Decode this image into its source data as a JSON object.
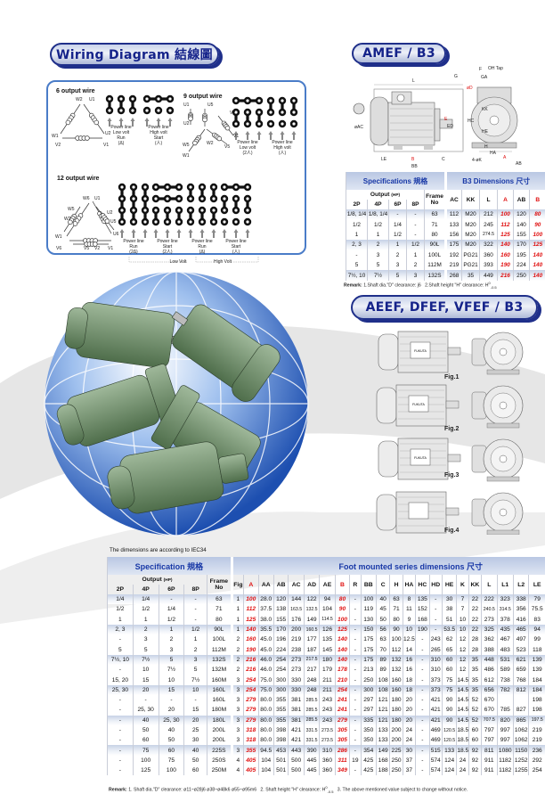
{
  "wiring": {
    "title": "Wiring Diagram 結線圖",
    "six": {
      "heading": "6 output wire",
      "coils": [
        "W2",
        "U1",
        "W1",
        "U2",
        "V2",
        "V1"
      ],
      "labels": [
        [
          "Power line",
          "Low volt",
          "Run",
          "(Δ)"
        ],
        [
          "Power line",
          "High volt",
          "Start",
          "(人)"
        ]
      ]
    },
    "nine": {
      "heading": "9 output wire",
      "coils": [
        "U1",
        "U5",
        "U2",
        "V2",
        "W5",
        "W2",
        "V5",
        "V1",
        "W1"
      ],
      "labels": [
        [
          "Power line",
          "Low volt",
          "(2人)"
        ],
        [
          "Power line",
          "High volt",
          "(人)"
        ]
      ]
    },
    "twelve": {
      "heading": "12 output wire",
      "coils": [
        "W6",
        "U1",
        "W5",
        "U2",
        "W2",
        "U5",
        "W1",
        "U6",
        "V6",
        "V5",
        "V2",
        "V1"
      ],
      "labels": [
        [
          "Power line",
          "Run",
          "(2Δ)"
        ],
        [
          "Power line",
          "Start",
          "(2人)"
        ],
        [
          "Power line",
          "Run",
          "(Δ)"
        ],
        [
          "Power line",
          "Start",
          "(人)"
        ]
      ],
      "low_volt": "Low Volt",
      "high_volt": "High Volt"
    }
  },
  "amef": {
    "title": "AMEF / B3",
    "drawing_labels": {
      "F": "F",
      "oil_tap": "OH Tap",
      "G": "G",
      "GA": "GA",
      "D": "øD",
      "L": "L",
      "AC": "øAC",
      "E": "E",
      "ED": "ED",
      "LE": "LE",
      "B": "B",
      "C": "C",
      "BB": "BB",
      "KK": "KK",
      "HC": "HC",
      "HE": "HE",
      "H": "H",
      "HA": "HA",
      "K": "4-øK",
      "A": "A",
      "AB": "AB"
    },
    "spec_header": "Specifications 規格",
    "dim_header": "B3 Dimensions 尺寸",
    "output_label": "Output",
    "output_unit": "(HP)",
    "poles": [
      "2P",
      "4P",
      "6P",
      "8P"
    ],
    "frame_label": [
      "Frame",
      "No"
    ],
    "dim_columns": [
      "AC",
      "KK",
      "L",
      "A",
      "AB",
      "B"
    ],
    "red_columns": [
      "A",
      "B"
    ],
    "rows": [
      [
        "1/8, 1/4",
        "1/8, 1/4",
        "-",
        "-",
        "63",
        "112",
        "M20",
        "212",
        "100",
        "120",
        "80"
      ],
      [
        "1/2",
        "1/2",
        "1/4",
        "-",
        "71",
        "133",
        "M20",
        "245",
        "112",
        "140",
        "90"
      ],
      [
        "1",
        "1",
        "1/2",
        "-",
        "80",
        "156",
        "M20",
        "274.5",
        "125",
        "155",
        "100"
      ],
      [
        "2, 3",
        "2",
        "1",
        "1/2",
        "90L",
        "175",
        "M20",
        "322",
        "140",
        "170",
        "125"
      ],
      [
        "-",
        "3",
        "2",
        "1",
        "100L",
        "192",
        "PG21",
        "360",
        "160",
        "195",
        "140"
      ],
      [
        "5",
        "5",
        "3",
        "2",
        "112M",
        "219",
        "PG21",
        "393",
        "190",
        "224",
        "140"
      ],
      [
        "7½, 10",
        "7½",
        "5",
        "3",
        "132S",
        "268",
        "35",
        "449",
        "216",
        "250",
        "140"
      ]
    ],
    "band_rows": [
      0,
      3,
      6
    ],
    "remark_label": "Remark:",
    "remark_1": "1.Shaft dia.\"D\" clearance: j6",
    "remark_2": "2.Shaft height \"H\" clearance: H",
    "remark_2_tol": [
      "0",
      "-0.5"
    ]
  },
  "aeef": {
    "title": "AEEF, DFEF, VFEF / B3",
    "figures": [
      "Fig.1",
      "Fig.2",
      "Fig.3",
      "Fig.4"
    ],
    "nameplate": "FUKUTA"
  },
  "foot": {
    "note": "The dimensions are according to IEC34",
    "spec_header": "Specification 規格",
    "dim_header": "Foot mounted series dimensions 尺寸",
    "output_label": "Output",
    "output_unit": "(HP)",
    "poles": [
      "2P",
      "4P",
      "6P",
      "8P"
    ],
    "frame_label": [
      "Frame",
      "No"
    ],
    "dim_columns": [
      "Fig",
      "A",
      "AA",
      "AB",
      "AC",
      "AD",
      "AE",
      "B",
      "R",
      "BB",
      "C",
      "H",
      "HA",
      "HC",
      "HD",
      "HE",
      "K",
      "KK",
      "L",
      "L1",
      "L2",
      "LE"
    ],
    "red_columns": [
      "A",
      "B"
    ],
    "rows": [
      [
        "1/4",
        "1/4",
        "-",
        "-",
        "63",
        "1",
        "100",
        "28.0",
        "120",
        "144",
        "122",
        "94",
        "80",
        "-",
        "100",
        "40",
        "63",
        "8",
        "135",
        "-",
        "30",
        "7",
        "22",
        "222",
        "323",
        "338",
        "79"
      ],
      [
        "1/2",
        "1/2",
        "1/4",
        "-",
        "71",
        "1",
        "112",
        "37.5",
        "138",
        "163.5",
        "132.5",
        "104",
        "90",
        "-",
        "119",
        "45",
        "71",
        "11",
        "152",
        "-",
        "38",
        "7",
        "22",
        "240.5",
        "314.5",
        "356",
        "75.5"
      ],
      [
        "1",
        "1",
        "1/2",
        "-",
        "80",
        "1",
        "125",
        "38.0",
        "155",
        "176",
        "149",
        "114.5",
        "100",
        "-",
        "130",
        "50",
        "80",
        "9",
        "168",
        "-",
        "51",
        "10",
        "22",
        "273",
        "378",
        "416",
        "83"
      ],
      [
        "2, 3",
        "2",
        "1",
        "1/2",
        "90L",
        "1",
        "140",
        "35.5",
        "170",
        "200",
        "160.5",
        "126",
        "125",
        "-",
        "150",
        "56",
        "90",
        "10",
        "190",
        "-",
        "53.5",
        "10",
        "22",
        "325",
        "435",
        "465",
        "94"
      ],
      [
        "-",
        "3",
        "2",
        "1",
        "100L",
        "2",
        "160",
        "45.0",
        "196",
        "219",
        "177",
        "135",
        "140",
        "-",
        "175",
        "63",
        "100",
        "12.5",
        "-",
        "243",
        "62",
        "12",
        "28",
        "362",
        "467",
        "497",
        "99"
      ],
      [
        "5",
        "5",
        "3",
        "2",
        "112M",
        "2",
        "190",
        "45.0",
        "224",
        "238",
        "187",
        "145",
        "140",
        "-",
        "175",
        "70",
        "112",
        "14",
        "-",
        "265",
        "65",
        "12",
        "28",
        "388",
        "483",
        "523",
        "118"
      ],
      [
        "7½, 10",
        "7½",
        "5",
        "3",
        "132S",
        "2",
        "216",
        "46.0",
        "254",
        "273",
        "217.5",
        "180",
        "140",
        "-",
        "175",
        "89",
        "132",
        "16",
        "-",
        "310",
        "60",
        "12",
        "35",
        "448",
        "531",
        "621",
        "139"
      ],
      [
        "-",
        "10",
        "7½",
        "5",
        "132M",
        "2",
        "216",
        "46.0",
        "254",
        "273",
        "217",
        "179",
        "178",
        "-",
        "213",
        "89",
        "132",
        "16",
        "-",
        "310",
        "60",
        "12",
        "35",
        "486",
        "589",
        "659",
        "139"
      ],
      [
        "15, 20",
        "15",
        "10",
        "7½",
        "160M",
        "3",
        "254",
        "75.0",
        "300",
        "330",
        "248",
        "211",
        "210",
        "-",
        "250",
        "108",
        "160",
        "18",
        "-",
        "373",
        "75",
        "14.5",
        "35",
        "612",
        "738",
        "768",
        "184"
      ],
      [
        "25, 30",
        "20",
        "15",
        "10",
        "160L",
        "3",
        "254",
        "75.0",
        "300",
        "330",
        "248",
        "211",
        "254",
        "-",
        "300",
        "108",
        "160",
        "18",
        "-",
        "373",
        "75",
        "14.5",
        "35",
        "656",
        "782",
        "812",
        "184"
      ],
      [
        "-",
        "-",
        "-",
        "-",
        "160L",
        "3",
        "279",
        "80.0",
        "355",
        "381",
        "285.5",
        "243",
        "241",
        "-",
        "297",
        "121",
        "180",
        "20",
        "-",
        "421",
        "90",
        "14.5",
        "52",
        "670",
        "",
        "",
        "198"
      ],
      [
        "-",
        "25, 30",
        "20",
        "15",
        "180M",
        "3",
        "279",
        "80.0",
        "355",
        "381",
        "285.5",
        "243",
        "241",
        "-",
        "297",
        "121",
        "180",
        "20",
        "-",
        "421",
        "90",
        "14.5",
        "52",
        "670",
        "785",
        "827",
        "198"
      ],
      [
        "-",
        "40",
        "25, 30",
        "20",
        "180L",
        "3",
        "279",
        "80.0",
        "355",
        "381",
        "285.5",
        "243",
        "279",
        "-",
        "335",
        "121",
        "180",
        "20",
        "-",
        "421",
        "90",
        "14.5",
        "52",
        "707.5",
        "820",
        "865",
        "197.5"
      ],
      [
        "-",
        "50",
        "40",
        "25",
        "200L",
        "3",
        "318",
        "80.0",
        "398",
        "421",
        "331.5",
        "273.5",
        "305",
        "-",
        "350",
        "133",
        "200",
        "24",
        "-",
        "469",
        "120.5",
        "18.5",
        "60",
        "797",
        "997",
        "1062",
        "219"
      ],
      [
        "-",
        "60",
        "50",
        "30",
        "200L",
        "3",
        "318",
        "80.0",
        "398",
        "421",
        "331.5",
        "273.5",
        "305",
        "-",
        "350",
        "133",
        "200",
        "24",
        "-",
        "469",
        "120.5",
        "18.5",
        "60",
        "797",
        "997",
        "1062",
        "219"
      ],
      [
        "-",
        "75",
        "60",
        "40",
        "225S",
        "3",
        "355",
        "94.5",
        "453",
        "443",
        "390",
        "310",
        "286",
        "-",
        "354",
        "149",
        "225",
        "30",
        "-",
        "515",
        "133",
        "18.5",
        "92",
        "811",
        "1080",
        "1150",
        "236"
      ],
      [
        "-",
        "100",
        "75",
        "50",
        "250S",
        "4",
        "405",
        "104",
        "501",
        "500",
        "445",
        "360",
        "311",
        "19",
        "425",
        "168",
        "250",
        "37",
        "-",
        "574",
        "124",
        "24",
        "92",
        "911",
        "1182",
        "1252",
        "292"
      ],
      [
        "-",
        "125",
        "100",
        "60",
        "250M",
        "4",
        "405",
        "104",
        "501",
        "500",
        "445",
        "360",
        "349",
        "-",
        "425",
        "188",
        "250",
        "37",
        "-",
        "574",
        "124",
        "24",
        "92",
        "911",
        "1182",
        "1255",
        "254"
      ]
    ],
    "band_rows": [
      0,
      3,
      6,
      9,
      12,
      15
    ],
    "remark_label": "Remark:",
    "remark_1": "1. Shaft dia.\"D\" clearance: ø11~ø28j6  ø38~ø48k6  ø55~ø95m6",
    "remark_2": "2. Shaft height \"H\" clearance: H",
    "remark_2_tol": [
      "0",
      "-0.5"
    ],
    "remark_3": "3. The above mentioned value subject to change without notice."
  },
  "colors": {
    "title_blue": "#15238a",
    "header_blue": "#1737a6",
    "red_value": "#e01010",
    "motor_green": "#6f8f6a",
    "globe_blue": "#2a5fc0",
    "wiring_border": "#4a7cc8"
  }
}
